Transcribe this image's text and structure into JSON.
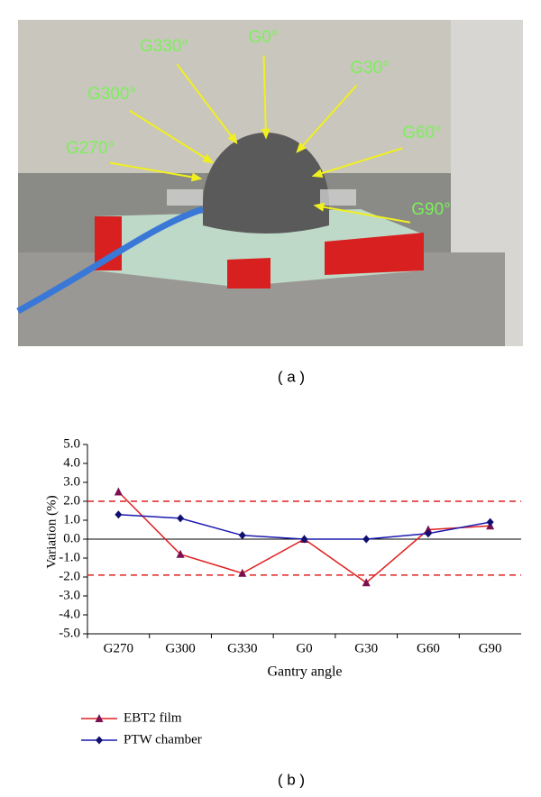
{
  "photo": {
    "labels": [
      "G0°",
      "G30°",
      "G60°",
      "G90°",
      "G270°",
      "G300°",
      "G330°"
    ]
  },
  "caption_a": "( a )",
  "caption_b": "( b )",
  "chart_data": {
    "type": "line",
    "categories": [
      "G270",
      "G300",
      "G330",
      "G0",
      "G30",
      "G60",
      "G90"
    ],
    "series": [
      {
        "name": "EBT2 film",
        "color": "#e02020",
        "marker_color": "#7a1050",
        "marker": "triangle",
        "values": [
          2.5,
          -0.8,
          -1.8,
          0.0,
          -2.3,
          0.5,
          0.7
        ]
      },
      {
        "name": "PTW chamber",
        "color": "#1a1ab0",
        "marker_color": "#101070",
        "marker": "diamond",
        "values": [
          1.3,
          1.1,
          0.2,
          0.0,
          0.0,
          0.3,
          0.9
        ]
      }
    ],
    "ylabel": "Variation (%)",
    "xlabel": "Gantry angle",
    "ylim": [
      -5,
      5
    ],
    "yticks": [
      {
        "value": -5,
        "label": "-5.0"
      },
      {
        "value": -4,
        "label": "-4.0"
      },
      {
        "value": -3,
        "label": "-3.0"
      },
      {
        "value": -2,
        "label": "-2.0"
      },
      {
        "value": -1,
        "label": "-1.0"
      },
      {
        "value": 0,
        "label": "0.0"
      },
      {
        "value": 1,
        "label": "1.0"
      },
      {
        "value": 2,
        "label": "2.0"
      },
      {
        "value": 3,
        "label": "3.0"
      },
      {
        "value": 4,
        "label": "4.0"
      },
      {
        "value": 5,
        "label": "5.0"
      }
    ],
    "reference_lines": [
      2,
      -1.9
    ],
    "reference_color": "#e02020"
  }
}
